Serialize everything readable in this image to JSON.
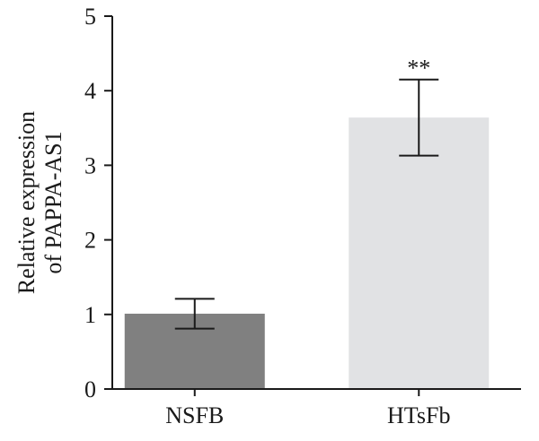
{
  "chart_data": {
    "type": "bar",
    "categories": [
      "NSFB",
      "HTsFb"
    ],
    "values": [
      1.01,
      3.64
    ],
    "error_low": [
      0.81,
      3.13
    ],
    "error_high": [
      1.21,
      4.15
    ],
    "bar_colors": [
      "#808080",
      "#e1e2e4"
    ],
    "significance": [
      "",
      "**"
    ],
    "ylabel_lines": [
      "Relative expression",
      "of PAPPA-AS1"
    ],
    "ylim": [
      0,
      5
    ],
    "yticks": [
      0,
      1,
      2,
      3,
      4,
      5
    ],
    "grid": false,
    "legend": false
  }
}
